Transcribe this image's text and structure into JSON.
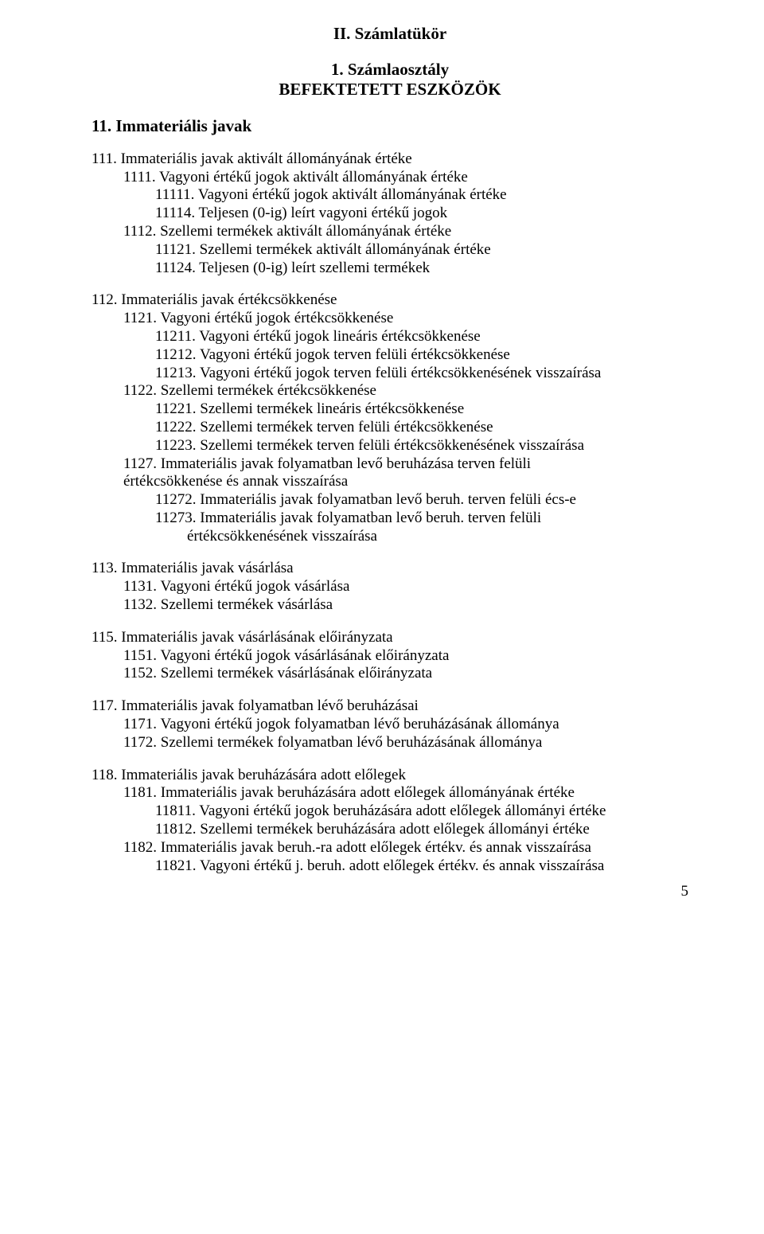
{
  "title_main": "II. Számlatükör",
  "title_section": "1. Számlaosztály",
  "title_section_2": "BEFEKTETETT ESZKÖZÖK",
  "h11": "11. Immateriális javak",
  "s111": {
    "a": "111. Immateriális javak aktivált állományának értéke",
    "b": "1111. Vagyoni értékű jogok aktivált állományának értéke",
    "c": "11111. Vagyoni értékű jogok aktivált állományának értéke",
    "d": "11114. Teljesen (0-ig) leírt vagyoni értékű jogok",
    "e": "1112. Szellemi termékek aktivált állományának értéke",
    "f": "11121. Szellemi termékek aktivált állományának értéke",
    "g": "11124. Teljesen (0-ig) leírt szellemi termékek"
  },
  "s112": {
    "a": "112. Immateriális javak értékcsökkenése",
    "b": "1121. Vagyoni értékű jogok értékcsökkenése",
    "c": "11211. Vagyoni értékű jogok lineáris értékcsökkenése",
    "d": "11212. Vagyoni értékű jogok terven felüli értékcsökkenése",
    "e": "11213. Vagyoni értékű jogok terven felüli értékcsökkenésének visszaírása",
    "f": "1122. Szellemi termékek értékcsökkenése",
    "g": "11221. Szellemi termékek lineáris értékcsökkenése",
    "h": "11222. Szellemi termékek terven felüli értékcsökkenése",
    "i": "11223. Szellemi termékek terven felüli értékcsökkenésének visszaírása",
    "j": "1127. Immateriális javak folyamatban levő beruházása terven felüli",
    "j2": "értékcsökkenése és annak visszaírása",
    "k": "11272. Immateriális javak folyamatban levő beruh. terven felüli écs-e",
    "l": "11273. Immateriális javak folyamatban levő beruh. terven felüli",
    "l2": "értékcsökkenésének visszaírása"
  },
  "s113": {
    "a": "113. Immateriális javak vásárlása",
    "b": "1131. Vagyoni értékű jogok vásárlása",
    "c": "1132. Szellemi termékek vásárlása"
  },
  "s115": {
    "a": "115. Immateriális javak vásárlásának előirányzata",
    "b": "1151. Vagyoni értékű jogok vásárlásának előirányzata",
    "c": "1152. Szellemi termékek vásárlásának előirányzata"
  },
  "s117": {
    "a": "117. Immateriális javak folyamatban lévő beruházásai",
    "b": "1171. Vagyoni értékű jogok folyamatban lévő beruházásának állománya",
    "c": "1172. Szellemi termékek folyamatban lévő beruházásának állománya"
  },
  "s118": {
    "a": "118. Immateriális javak beruházására adott előlegek",
    "b": "1181. Immateriális javak beruházására adott előlegek állományának értéke",
    "c": "11811. Vagyoni értékű jogok beruházására adott előlegek állományi értéke",
    "d": "11812. Szellemi termékek beruházására adott előlegek állományi értéke",
    "e": "1182. Immateriális javak beruh.-ra adott előlegek értékv. és annak visszaírása",
    "f": "11821. Vagyoni értékű j. beruh. adott előlegek értékv. és annak visszaírása"
  },
  "page_number": "5"
}
